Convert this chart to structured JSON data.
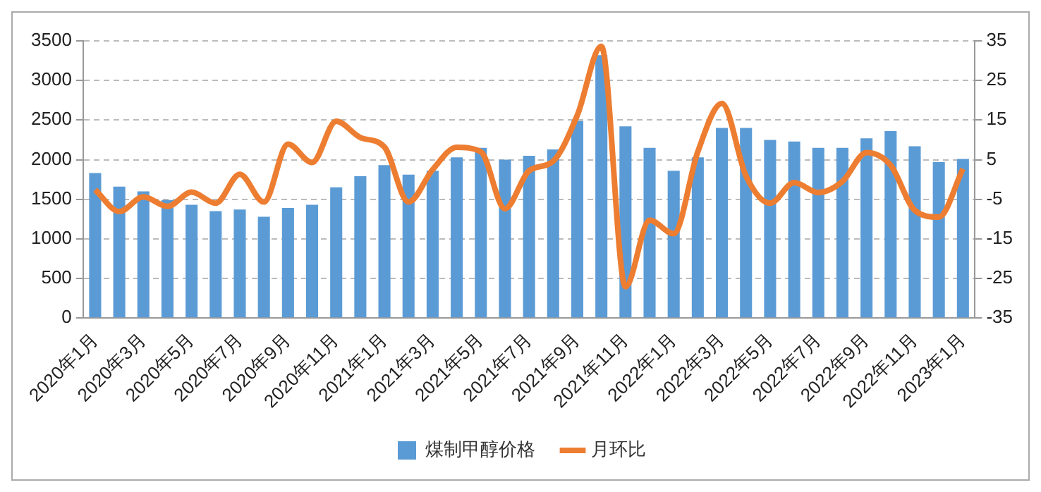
{
  "chart_data": {
    "type": "bar",
    "categories": [
      "2020年1月",
      null,
      "2020年3月",
      null,
      "2020年5月",
      null,
      "2020年7月",
      null,
      "2020年9月",
      null,
      "2020年11月",
      null,
      "2021年1月",
      null,
      "2021年3月",
      null,
      "2021年5月",
      null,
      "2021年7月",
      null,
      "2021年9月",
      null,
      "2021年11月",
      null,
      "2022年1月",
      null,
      "2022年3月",
      null,
      "2022年5月",
      null,
      "2022年7月",
      null,
      "2022年9月",
      null,
      "2022年11月",
      null,
      "2023年1月"
    ],
    "series": [
      {
        "name": "煤制甲醇价格",
        "color": "#5b9bd5",
        "values": [
          1830,
          1660,
          1600,
          1490,
          1430,
          1350,
          1370,
          1280,
          1390,
          1430,
          1650,
          1790,
          1930,
          1810,
          1860,
          2030,
          2150,
          2000,
          2050,
          2130,
          2490,
          3320,
          2420,
          2150,
          1860,
          2030,
          2400,
          2400,
          2250,
          2230,
          2150,
          2150,
          2270,
          2360,
          2170,
          1970,
          2010
        ]
      },
      {
        "name": "月环比",
        "type": "line",
        "axis": "y2",
        "color": "#ed7d31",
        "values": [
          -2.6,
          -8.1,
          -4.4,
          -6.8,
          -3.2,
          -6.0,
          1.3,
          -5.7,
          8.9,
          4.3,
          14.7,
          10.6,
          8.2,
          -5.7,
          2.5,
          8.1,
          7.0,
          -7.4,
          2.2,
          4.6,
          16.2,
          33.6,
          -27.1,
          -10.3,
          -13.7,
          7.0,
          19.2,
          0.9,
          -6.0,
          -0.8,
          -3.3,
          -0.5,
          6.8,
          3.6,
          -7.8,
          -9.5,
          2.7
        ]
      }
    ],
    "ylim": [
      0,
      3500
    ],
    "yticks": [
      0,
      500,
      1000,
      1500,
      2000,
      2500,
      3000,
      3500
    ],
    "y2lim": [
      -35,
      35
    ],
    "y2ticks": [
      -35,
      -25,
      -15,
      -5,
      5,
      15,
      25,
      35
    ],
    "grid": "y",
    "legend": "bottom",
    "marker": "none",
    "line_style": "solid"
  }
}
